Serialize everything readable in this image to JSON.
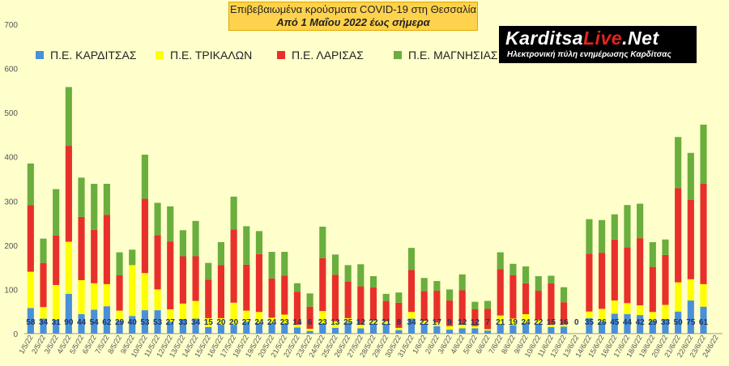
{
  "header": {
    "title": "Επιβεβαιωμένα κρούσματα COVID-19 στη Θεσσαλία",
    "subtitle": "Από 1 Μαΐου 2022 έως σήμερα"
  },
  "logo": {
    "brand_a": "Karditsa",
    "brand_b": "Live",
    "brand_c": ".Net",
    "tagline": "Ηλεκτρονική πύλη ενημέρωσης Καρδίτσας"
  },
  "chart_data": {
    "type": "bar",
    "stacked": true,
    "ylim": [
      0,
      700
    ],
    "yticks": [
      0,
      100,
      200,
      300,
      400,
      500,
      600,
      700
    ],
    "grid": false,
    "legend_position": "top-left",
    "categories": [
      "1/5/22",
      "2/5/22",
      "3/5/22",
      "4/5/22",
      "5/5/22",
      "6/5/22",
      "7/5/22",
      "8/5/22",
      "9/5/22",
      "10/5/22",
      "11/5/22",
      "12/5/22",
      "13/5/22",
      "14/5/22",
      "15/5/22",
      "16/5/22",
      "17/5/22",
      "18/5/22",
      "19/5/22",
      "20/5/22",
      "21/5/22",
      "22/5/22",
      "23/5/22",
      "24/5/22",
      "25/5/22",
      "26/5/22",
      "27/5/22",
      "28/5/22",
      "29/5/22",
      "30/5/22",
      "31/5/22",
      "1/6/22",
      "2/6/22",
      "3/6/22",
      "4/6/22",
      "5/6/22",
      "6/6/22",
      "7/6/22",
      "8/6/22",
      "9/6/22",
      "10/6/22",
      "11/6/22",
      "12/6/22",
      "13/6/22",
      "14/6/22",
      "15/6/22",
      "16/6/22",
      "17/6/22",
      "18/6/22",
      "19/6/22",
      "20/6/22",
      "21/6/22",
      "22/6/22",
      "23/6/22",
      "24/6/22"
    ],
    "series": [
      {
        "name": "Π.Ε. ΚΑΡΔΙΤΣΑΣ",
        "color": "#4A90D9",
        "values": [
          58,
          34,
          31,
          90,
          44,
          54,
          62,
          29,
          40,
          53,
          53,
          27,
          33,
          34,
          15,
          20,
          20,
          27,
          24,
          24,
          23,
          14,
          6,
          23,
          13,
          25,
          12,
          22,
          21,
          8,
          34,
          22,
          17,
          9,
          12,
          12,
          7,
          21,
          19,
          24,
          22,
          15,
          16,
          0,
          35,
          26,
          45,
          44,
          42,
          29,
          33,
          50,
          75,
          61,
          0
        ]
      },
      {
        "name": "Π.Ε. ΤΡΙΚΑΛΩΝ",
        "color": "#FFFF00",
        "values": [
          82,
          26,
          79,
          118,
          77,
          60,
          50,
          23,
          115,
          84,
          47,
          28,
          35,
          40,
          20,
          15,
          50,
          25,
          25,
          12,
          20,
          6,
          5,
          28,
          15,
          10,
          8,
          8,
          7,
          5,
          15,
          7,
          8,
          8,
          8,
          5,
          3,
          20,
          15,
          20,
          10,
          5,
          5,
          0,
          15,
          30,
          30,
          25,
          22,
          20,
          32,
          66,
          48,
          51,
          0
        ]
      },
      {
        "name": "Π.Ε. ΛΑΡΙΣΑΣ",
        "color": "#E8302A",
        "values": [
          151,
          100,
          112,
          217,
          143,
          121,
          157,
          80,
          0,
          168,
          123,
          153,
          107,
          101,
          87,
          120,
          166,
          104,
          131,
          89,
          88,
          75,
          50,
          120,
          105,
          83,
          87,
          75,
          46,
          57,
          95,
          67,
          72,
          58,
          78,
          38,
          46,
          105,
          98,
          70,
          65,
          94,
          50,
          0,
          131,
          127,
          138,
          126,
          152,
          102,
          113,
          213,
          180,
          227,
          0
        ]
      },
      {
        "name": "Π.Ε. ΜΑΓΝΗΣΙΑΣ",
        "color": "#6AAE3E",
        "values": [
          94,
          55,
          105,
          133,
          89,
          104,
          70,
          52,
          35,
          100,
          73,
          80,
          59,
          80,
          38,
          52,
          74,
          87,
          52,
          60,
          54,
          19,
          30,
          71,
          46,
          37,
          50,
          25,
          16,
          23,
          50,
          30,
          22,
          25,
          36,
          17,
          18,
          38,
          26,
          38,
          33,
          17,
          34,
          0,
          78,
          74,
          57,
          96,
          78,
          56,
          35,
          116,
          106,
          134,
          0
        ]
      }
    ],
    "data_labels": [
      58,
      34,
      31,
      90,
      44,
      54,
      62,
      29,
      40,
      53,
      53,
      27,
      33,
      34,
      15,
      20,
      20,
      27,
      24,
      24,
      23,
      14,
      6,
      23,
      13,
      25,
      12,
      22,
      21,
      8,
      34,
      22,
      17,
      9,
      12,
      12,
      7,
      21,
      19,
      24,
      22,
      15,
      16,
      0,
      35,
      26,
      45,
      44,
      42,
      29,
      33,
      50,
      75,
      61,
      null
    ]
  }
}
